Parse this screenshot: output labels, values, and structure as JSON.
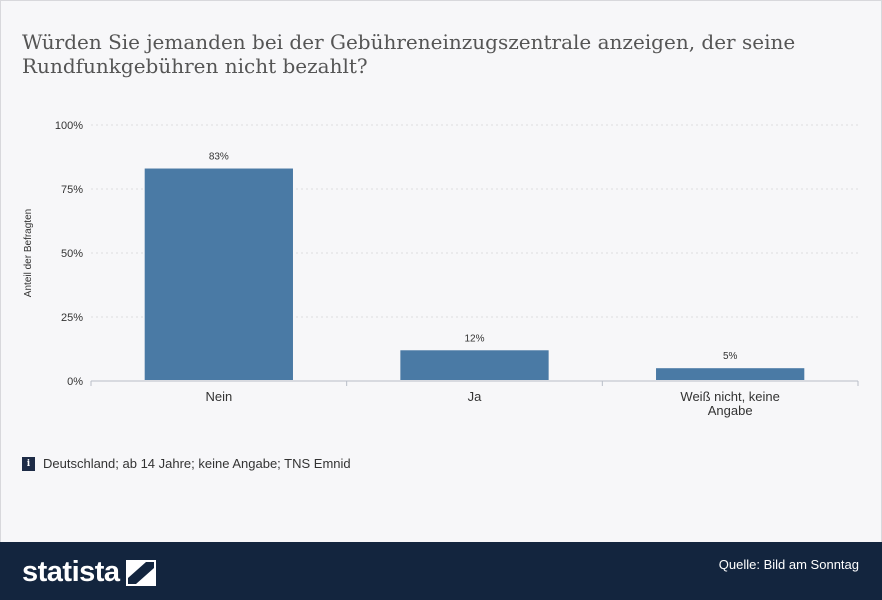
{
  "title": "Würden Sie jemanden bei der Gebühreneinzugszentrale anzeigen, der seine Rundfunkgebühren nicht bezahlt?",
  "note": "Deutschland; ab 14 Jahre; keine Angabe; TNS Emnid",
  "footer": {
    "brand": "statista",
    "source": "Quelle: Bild am Sonntag"
  },
  "colors": {
    "bar": "#4a7aa5",
    "footer": "#13253e"
  },
  "icons": {
    "info": "info-icon",
    "brand": "statista-logo-icon"
  },
  "chart_data": {
    "type": "bar",
    "categories": [
      [
        "Nein"
      ],
      [
        "Ja"
      ],
      [
        "Weiß nicht, keine",
        "Angabe"
      ]
    ],
    "values": [
      83,
      12,
      5
    ],
    "data_labels": [
      "83%",
      "12%",
      "5%"
    ],
    "ylabel": "Anteil der Befragten",
    "ylim": [
      0,
      100
    ],
    "yticks": [
      0,
      25,
      50,
      75,
      100
    ],
    "ytick_labels": [
      "0%",
      "25%",
      "50%",
      "75%",
      "100%"
    ],
    "grid": true
  }
}
